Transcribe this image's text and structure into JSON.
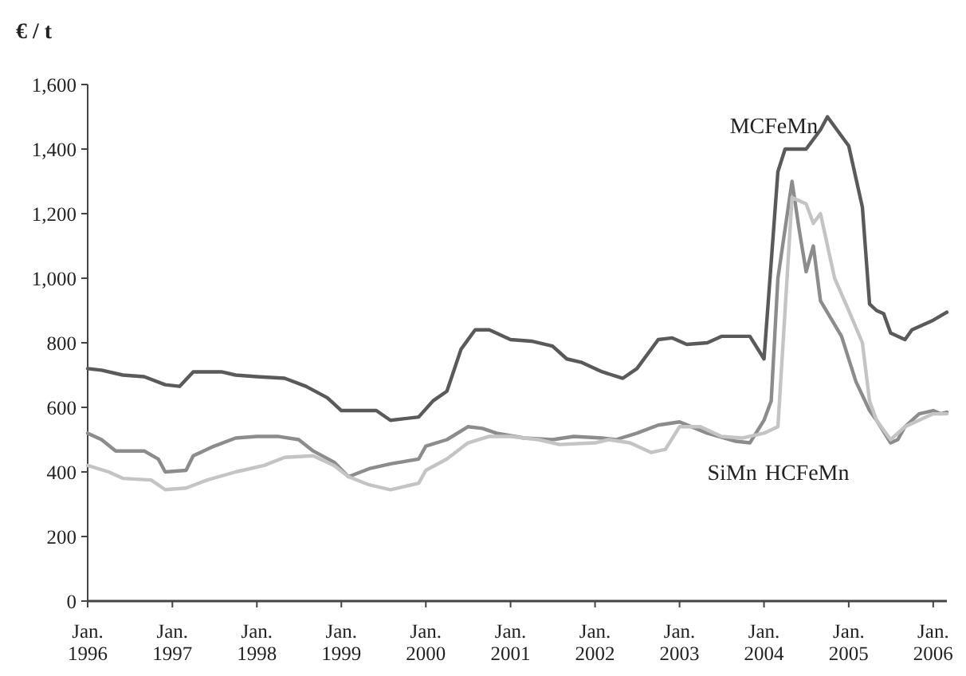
{
  "chart_data": {
    "type": "line",
    "ylabel": "€ / t",
    "xlim": [
      "1996-01",
      "2006-03"
    ],
    "ylim": [
      0,
      1600
    ],
    "yticks": [
      0,
      {
        "value": 200,
        "label": "200"
      },
      {
        "value": 400,
        "label": "400"
      },
      {
        "value": 600,
        "label": "600"
      },
      {
        "value": 800,
        "label": "800"
      },
      {
        "value": 1000,
        "label": "1,000"
      },
      {
        "value": 1200,
        "label": "1,200"
      },
      {
        "value": 1400,
        "label": "1,400"
      },
      {
        "value": 1600,
        "label": "1,600"
      }
    ],
    "xticks": [
      {
        "value": "1996-01",
        "label": "Jan. 1996"
      },
      {
        "value": "1997-01",
        "label": "Jan. 1997"
      },
      {
        "value": "1998-01",
        "label": "Jan. 1998"
      },
      {
        "value": "1999-01",
        "label": "Jan. 1999"
      },
      {
        "value": "2000-01",
        "label": "Jan. 2000"
      },
      {
        "value": "2001-01",
        "label": "Jan. 2001"
      },
      {
        "value": "2002-01",
        "label": "Jan. 2002"
      },
      {
        "value": "2003-01",
        "label": "Jan. 2003"
      },
      {
        "value": "2004-01",
        "label": "Jan. 2004"
      },
      {
        "value": "2005-01",
        "label": "Jan. 2005"
      },
      {
        "value": "2006-01",
        "label": "Jan. 2006"
      }
    ],
    "grid": false,
    "marker": "none",
    "line_style": "solid",
    "series": [
      {
        "name": "MCFeMn",
        "color": "#5a5a5a",
        "x": [
          "1996-01",
          "1996-03",
          "1996-06",
          "1996-09",
          "1996-12",
          "1997-02",
          "1997-04",
          "1997-08",
          "1997-10",
          "1998-01",
          "1998-05",
          "1998-08",
          "1998-11",
          "1999-01",
          "1999-06",
          "1999-08",
          "1999-12",
          "2000-02",
          "2000-04",
          "2000-06",
          "2000-08",
          "2000-10",
          "2001-01",
          "2001-04",
          "2001-07",
          "2001-09",
          "2001-11",
          "2002-02",
          "2002-05",
          "2002-07",
          "2002-10",
          "2002-12",
          "2003-02",
          "2003-05",
          "2003-07",
          "2003-11",
          "2004-01",
          "2004-03",
          "2004-04",
          "2004-07",
          "2004-09",
          "2004-10",
          "2004-12",
          "2005-01",
          "2005-03",
          "2005-04",
          "2005-05",
          "2005-06",
          "2005-07",
          "2005-09",
          "2005-10",
          "2006-01",
          "2006-03"
        ],
        "values": [
          720,
          715,
          700,
          695,
          670,
          665,
          710,
          710,
          700,
          695,
          690,
          665,
          630,
          590,
          590,
          560,
          570,
          620,
          650,
          780,
          840,
          840,
          810,
          805,
          790,
          750,
          740,
          710,
          690,
          720,
          810,
          815,
          795,
          800,
          820,
          820,
          750,
          1330,
          1400,
          1400,
          1460,
          1500,
          1440,
          1410,
          1220,
          920,
          900,
          890,
          830,
          810,
          840,
          870,
          895
        ]
      },
      {
        "name": "SiMn",
        "color": "#8c8c8c",
        "x": [
          "1996-01",
          "1996-03",
          "1996-05",
          "1996-09",
          "1996-11",
          "1996-12",
          "1997-03",
          "1997-04",
          "1997-07",
          "1997-10",
          "1998-01",
          "1998-04",
          "1998-07",
          "1998-09",
          "1998-12",
          "1999-02",
          "1999-05",
          "1999-08",
          "1999-12",
          "2000-01",
          "2000-04",
          "2000-07",
          "2000-09",
          "2000-11",
          "2001-03",
          "2001-07",
          "2001-10",
          "2002-02",
          "2002-04",
          "2002-07",
          "2002-10",
          "2003-01",
          "2003-05",
          "2003-09",
          "2003-11",
          "2004-01",
          "2004-02",
          "2004-03",
          "2004-05",
          "2004-06",
          "2004-07",
          "2004-08",
          "2004-09",
          "2004-12",
          "2005-02",
          "2005-04",
          "2005-05",
          "2005-07",
          "2005-08",
          "2005-09",
          "2005-11",
          "2006-01",
          "2006-02",
          "2006-03"
        ],
        "values": [
          520,
          500,
          465,
          465,
          440,
          400,
          405,
          450,
          480,
          505,
          510,
          510,
          500,
          465,
          430,
          385,
          410,
          425,
          440,
          480,
          500,
          540,
          535,
          520,
          505,
          500,
          510,
          505,
          500,
          520,
          545,
          555,
          520,
          495,
          490,
          560,
          620,
          1000,
          1300,
          1150,
          1020,
          1100,
          930,
          820,
          680,
          590,
          560,
          490,
          500,
          540,
          580,
          590,
          580,
          585
        ]
      },
      {
        "name": "HCFeMn",
        "color": "#c4c4c4",
        "x": [
          "1996-01",
          "1996-04",
          "1996-06",
          "1996-10",
          "1996-12",
          "1997-03",
          "1997-06",
          "1997-10",
          "1998-02",
          "1998-05",
          "1998-09",
          "1998-12",
          "1999-02",
          "1999-05",
          "1999-08",
          "1999-12",
          "2000-01",
          "2000-04",
          "2000-07",
          "2000-10",
          "2001-01",
          "2001-05",
          "2001-08",
          "2002-01",
          "2002-03",
          "2002-06",
          "2002-09",
          "2002-11",
          "2003-01",
          "2003-04",
          "2003-07",
          "2003-10",
          "2004-01",
          "2004-03",
          "2004-04",
          "2004-05",
          "2004-07",
          "2004-08",
          "2004-09",
          "2004-11",
          "2005-01",
          "2005-03",
          "2005-04",
          "2005-05",
          "2005-07",
          "2005-09",
          "2006-01",
          "2006-03"
        ],
        "values": [
          420,
          400,
          380,
          375,
          345,
          350,
          375,
          400,
          420,
          445,
          450,
          420,
          385,
          360,
          345,
          365,
          405,
          440,
          490,
          510,
          510,
          500,
          485,
          490,
          500,
          490,
          460,
          470,
          540,
          540,
          510,
          505,
          520,
          540,
          900,
          1250,
          1230,
          1170,
          1200,
          1000,
          900,
          800,
          620,
          560,
          500,
          540,
          580,
          580
        ]
      }
    ]
  }
}
